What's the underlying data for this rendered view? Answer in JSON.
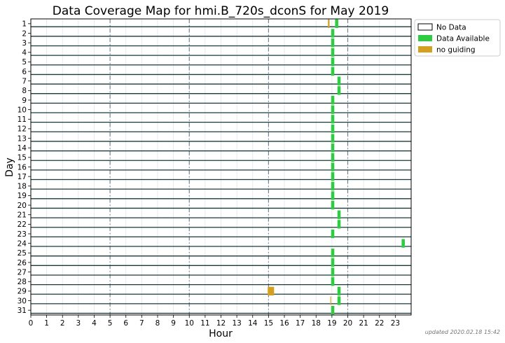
{
  "chart_data": {
    "type": "timeline",
    "title": "Data Coverage Map for hmi.B_720s_dconS for May 2019",
    "xlabel": "Hour",
    "ylabel": "Day",
    "xlim": [
      0,
      24
    ],
    "x_ticks": [
      "0",
      "1",
      "2",
      "3",
      "4",
      "5",
      "6",
      "7",
      "8",
      "9",
      "10",
      "11",
      "12",
      "13",
      "14",
      "15",
      "16",
      "17",
      "18",
      "19",
      "20",
      "21",
      "22",
      "23"
    ],
    "days": [
      "1",
      "2",
      "3",
      "4",
      "5",
      "6",
      "7",
      "8",
      "9",
      "10",
      "11",
      "12",
      "13",
      "14",
      "15",
      "16",
      "17",
      "18",
      "19",
      "20",
      "21",
      "22",
      "23",
      "24",
      "25",
      "26",
      "27",
      "28",
      "29",
      "30",
      "31"
    ],
    "major_gridlines_hours": [
      5,
      10,
      15,
      20
    ],
    "legend": [
      {
        "label": "No Data",
        "color": "#ffffff"
      },
      {
        "label": "Data Available",
        "color": "#2ecc40"
      },
      {
        "label": "no guiding",
        "color": "#d4a020"
      }
    ],
    "status_colors": {
      "available": "#2ecc40",
      "no_guiding": "#d4a020",
      "baseline": "#1a3a3a"
    },
    "segments": [
      {
        "day": 1,
        "start": 18.75,
        "end": 18.85,
        "status": "no_guiding"
      },
      {
        "day": 1,
        "start": 19.2,
        "end": 19.4,
        "status": "available"
      },
      {
        "day": 2,
        "start": 18.95,
        "end": 19.15,
        "status": "available"
      },
      {
        "day": 3,
        "start": 18.95,
        "end": 19.15,
        "status": "available"
      },
      {
        "day": 4,
        "start": 18.95,
        "end": 19.15,
        "status": "available"
      },
      {
        "day": 5,
        "start": 18.95,
        "end": 19.15,
        "status": "available"
      },
      {
        "day": 6,
        "start": 18.95,
        "end": 19.15,
        "status": "available"
      },
      {
        "day": 7,
        "start": 19.35,
        "end": 19.55,
        "status": "available"
      },
      {
        "day": 8,
        "start": 19.35,
        "end": 19.55,
        "status": "available"
      },
      {
        "day": 9,
        "start": 18.95,
        "end": 19.15,
        "status": "available"
      },
      {
        "day": 10,
        "start": 18.95,
        "end": 19.15,
        "status": "available"
      },
      {
        "day": 11,
        "start": 18.95,
        "end": 19.15,
        "status": "available"
      },
      {
        "day": 12,
        "start": 18.95,
        "end": 19.15,
        "status": "available"
      },
      {
        "day": 13,
        "start": 18.95,
        "end": 19.15,
        "status": "available"
      },
      {
        "day": 14,
        "start": 18.95,
        "end": 19.15,
        "status": "available"
      },
      {
        "day": 15,
        "start": 18.95,
        "end": 19.15,
        "status": "available"
      },
      {
        "day": 16,
        "start": 18.95,
        "end": 19.15,
        "status": "available"
      },
      {
        "day": 17,
        "start": 18.95,
        "end": 19.15,
        "status": "available"
      },
      {
        "day": 18,
        "start": 18.95,
        "end": 19.15,
        "status": "available"
      },
      {
        "day": 19,
        "start": 18.95,
        "end": 19.15,
        "status": "available"
      },
      {
        "day": 20,
        "start": 18.95,
        "end": 19.15,
        "status": "available"
      },
      {
        "day": 21,
        "start": 19.35,
        "end": 19.55,
        "status": "available"
      },
      {
        "day": 22,
        "start": 19.35,
        "end": 19.55,
        "status": "available"
      },
      {
        "day": 23,
        "start": 18.95,
        "end": 19.15,
        "status": "available"
      },
      {
        "day": 24,
        "start": 23.4,
        "end": 23.6,
        "status": "available"
      },
      {
        "day": 25,
        "start": 18.95,
        "end": 19.15,
        "status": "available"
      },
      {
        "day": 26,
        "start": 18.95,
        "end": 19.15,
        "status": "available"
      },
      {
        "day": 27,
        "start": 18.95,
        "end": 19.15,
        "status": "available"
      },
      {
        "day": 28,
        "start": 18.95,
        "end": 19.15,
        "status": "available"
      },
      {
        "day": 29,
        "start": 14.95,
        "end": 15.35,
        "status": "no_guiding"
      },
      {
        "day": 29,
        "start": 19.35,
        "end": 19.55,
        "status": "available"
      },
      {
        "day": 30,
        "start": 18.9,
        "end": 18.95,
        "status": "no_guiding"
      },
      {
        "day": 30,
        "start": 19.35,
        "end": 19.55,
        "status": "available"
      },
      {
        "day": 31,
        "start": 18.95,
        "end": 19.15,
        "status": "available"
      }
    ]
  },
  "footnote": "updated 2020.02.18 15:42"
}
